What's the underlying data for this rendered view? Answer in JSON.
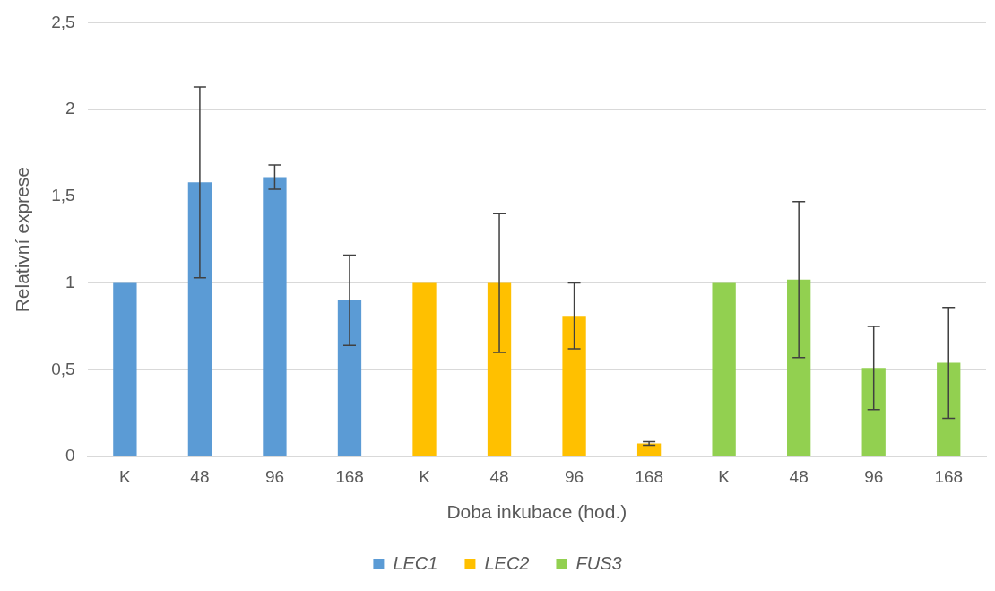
{
  "chart_data": {
    "type": "bar",
    "xlabel": "Doba inkubace (hod.)",
    "ylabel": "Relativní exprese",
    "categories": [
      "K",
      "48",
      "96",
      "168",
      "K",
      "48",
      "96",
      "168",
      "K",
      "48",
      "96",
      "168"
    ],
    "series": [
      {
        "name": "LEC1",
        "color": "#5b9bd5",
        "values": [
          1,
          1.58,
          1.61,
          0.9,
          null,
          null,
          null,
          null,
          null,
          null,
          null,
          null
        ],
        "errors": [
          null,
          0.55,
          0.07,
          0.26,
          null,
          null,
          null,
          null,
          null,
          null,
          null,
          null
        ]
      },
      {
        "name": "LEC2",
        "color": "#ffc000",
        "values": [
          null,
          null,
          null,
          null,
          1,
          1.0,
          0.81,
          0.075,
          null,
          null,
          null,
          null
        ],
        "errors": [
          null,
          null,
          null,
          null,
          null,
          0.4,
          0.19,
          0.01,
          null,
          null,
          null,
          null
        ]
      },
      {
        "name": "FUS3",
        "color": "#92d050",
        "values": [
          null,
          null,
          null,
          null,
          null,
          null,
          null,
          null,
          1,
          1.02,
          0.51,
          0.54
        ],
        "errors": [
          null,
          null,
          null,
          null,
          null,
          null,
          null,
          null,
          null,
          0.45,
          0.24,
          0.32
        ]
      }
    ],
    "ylim": [
      0,
      2.5
    ],
    "yticks": [
      0,
      {
        "value": 0.5,
        "label": "0,5"
      },
      1,
      {
        "value": 1.5,
        "label": "1,5"
      },
      2,
      {
        "value": 2.5,
        "label": "2,5"
      }
    ],
    "grid": "y",
    "legend": "bottom"
  }
}
